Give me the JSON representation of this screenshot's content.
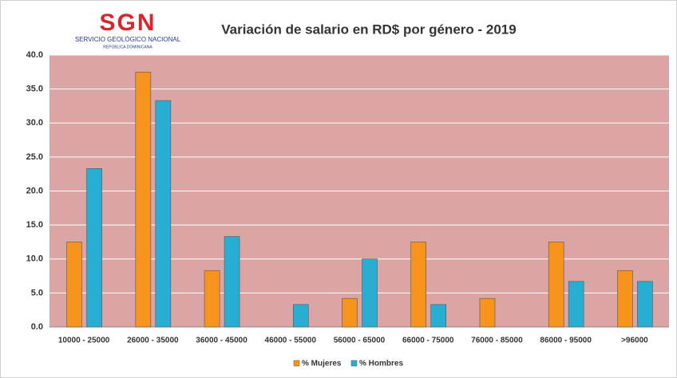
{
  "logo": {
    "name": "SGN",
    "line1": "SERVICIO GEOLÓGICO NACIONAL",
    "line2": "REPÚBLICA DOMINICANA"
  },
  "chart_data": {
    "type": "bar",
    "title": "Variación de salario en RD$ por género - 2019",
    "categories": [
      "10000  - 25000",
      "26000  - 35000",
      "36000  - 45000",
      "46000  - 55000",
      "56000  - 65000",
      "66000  - 75000",
      "76000  - 85000",
      "86000  - 95000",
      ">96000"
    ],
    "series": [
      {
        "name": "% Mujeres",
        "color": "#f7941d",
        "values": [
          12.5,
          37.5,
          8.3,
          0,
          4.2,
          12.5,
          4.2,
          12.5,
          8.3
        ]
      },
      {
        "name": "% Hombres",
        "color": "#29aed3",
        "values": [
          23.3,
          33.3,
          13.3,
          3.3,
          10.0,
          3.3,
          0,
          6.7,
          6.7
        ]
      }
    ],
    "ylim": [
      0,
      40
    ],
    "yticks": [
      {
        "value": 0,
        "label": "0.0"
      },
      {
        "value": 5,
        "label": "5.0"
      },
      {
        "value": 10,
        "label": "10.0"
      },
      {
        "value": 15,
        "label": "15.0"
      },
      {
        "value": 20,
        "label": "20.0"
      },
      {
        "value": 25,
        "label": "25.0"
      },
      {
        "value": 30,
        "label": "30.0"
      },
      {
        "value": 35,
        "label": "35.0"
      },
      {
        "value": 40,
        "label": "40.0"
      }
    ],
    "grid": true,
    "legend": "bottom",
    "plot_background": "#dba5a5"
  }
}
